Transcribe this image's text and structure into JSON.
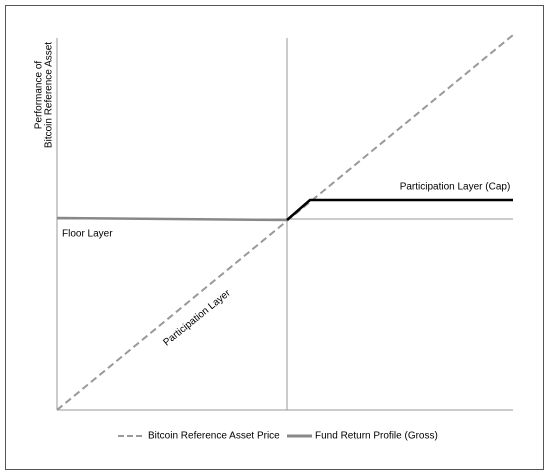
{
  "y_axis_label": {
    "line1": "Performance of",
    "line2": "Bitcoin Reference Asset"
  },
  "annotations": {
    "cap": "Participation Layer (Cap)",
    "floor": "Floor Layer",
    "participation": "Participation Layer"
  },
  "legend": {
    "reference": "Bitcoin Reference Asset Price",
    "fund": "Fund Return Profile (Gross)"
  }
}
